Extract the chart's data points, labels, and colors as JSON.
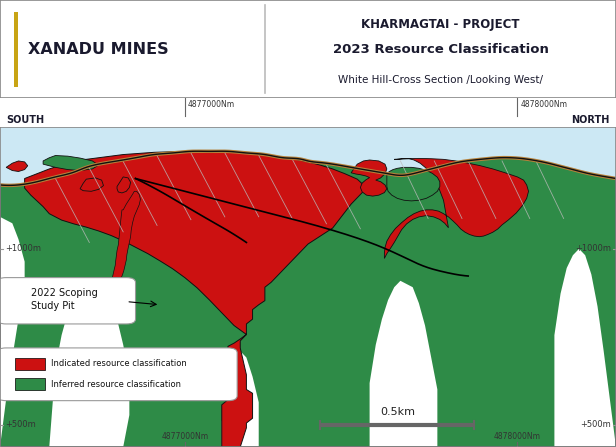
{
  "title_line1": "KHARMAGTAI - PROJECT",
  "title_line2": "2023 Resource Classification",
  "title_line3": "White Hill-Cross Section /Looking West/",
  "logo_text": "XANADU MINES",
  "south_label": "SOUTH",
  "north_label": "NORTH",
  "coord_left": "4877000Nm",
  "coord_right": "4878000Nm",
  "elev_left_mid": "+1000m",
  "elev_right_mid": "+1000m",
  "elev_left_bot": "+500m",
  "elev_right_bot": "+500m",
  "legend_indicated": "Indicated resource classification",
  "legend_inferred": "Inferred resource classification",
  "scale_label": "0.5km",
  "pit_label": "2022 Scoping\nStudy Pit",
  "bg_color": "#ffffff",
  "map_sky_color": "#cce8f4",
  "map_green_color": "#2e8b47",
  "map_red_color": "#cc1111",
  "terrain_color": "#b5813a",
  "accent_color": "#c8a415",
  "title_color": "#1a1a2e",
  "outline_color": "#111111"
}
